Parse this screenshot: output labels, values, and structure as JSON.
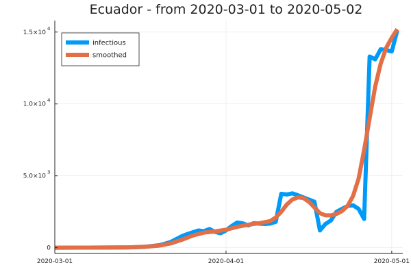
{
  "chart_data": {
    "type": "line",
    "title": "Ecuador - from 2020-03-01 to 2020-05-02",
    "xlabel": "",
    "ylabel": "",
    "xlim": [
      "2020-03-01",
      "2020-05-03"
    ],
    "ylim": [
      -400,
      15800
    ],
    "grid": true,
    "legend_position": "top-left",
    "x_ticks": [
      {
        "value": "2020-03-01",
        "label": "2020-03-01"
      },
      {
        "value": "2020-04-01",
        "label": "2020-04-01"
      },
      {
        "value": "2020-05-01",
        "label": "2020-05-01"
      }
    ],
    "y_ticks": [
      {
        "value": 0,
        "label": "0",
        "exp": ""
      },
      {
        "value": 5000,
        "label": "5.0×10",
        "exp": "3"
      },
      {
        "value": 10000,
        "label": "1.0×10",
        "exp": "4"
      },
      {
        "value": 15000,
        "label": "1.5×10",
        "exp": "4"
      }
    ],
    "series": [
      {
        "name": "infectious",
        "color": "#009af9",
        "points": [
          [
            "2020-03-01",
            0
          ],
          [
            "2020-03-05",
            5
          ],
          [
            "2020-03-10",
            10
          ],
          [
            "2020-03-14",
            20
          ],
          [
            "2020-03-17",
            50
          ],
          [
            "2020-03-20",
            180
          ],
          [
            "2020-03-22",
            400
          ],
          [
            "2020-03-24",
            800
          ],
          [
            "2020-03-25",
            950
          ],
          [
            "2020-03-27",
            1200
          ],
          [
            "2020-03-28",
            1150
          ],
          [
            "2020-03-29",
            1300
          ],
          [
            "2020-03-30",
            1100
          ],
          [
            "2020-03-31",
            1000
          ],
          [
            "2020-04-01",
            1200
          ],
          [
            "2020-04-02",
            1500
          ],
          [
            "2020-04-03",
            1750
          ],
          [
            "2020-04-04",
            1700
          ],
          [
            "2020-04-05",
            1550
          ],
          [
            "2020-04-06",
            1700
          ],
          [
            "2020-04-08",
            1650
          ],
          [
            "2020-04-09",
            1680
          ],
          [
            "2020-04-10",
            1800
          ],
          [
            "2020-04-11",
            3750
          ],
          [
            "2020-04-12",
            3700
          ],
          [
            "2020-04-13",
            3780
          ],
          [
            "2020-04-14",
            3650
          ],
          [
            "2020-04-15",
            3500
          ],
          [
            "2020-04-16",
            3350
          ],
          [
            "2020-04-17",
            3200
          ],
          [
            "2020-04-18",
            1200
          ],
          [
            "2020-04-19",
            1650
          ],
          [
            "2020-04-20",
            1900
          ],
          [
            "2020-04-21",
            2500
          ],
          [
            "2020-04-22",
            2700
          ],
          [
            "2020-04-23",
            2900
          ],
          [
            "2020-04-24",
            2950
          ],
          [
            "2020-04-25",
            2700
          ],
          [
            "2020-04-26",
            2000
          ],
          [
            "2020-04-27",
            13300
          ],
          [
            "2020-04-28",
            13100
          ],
          [
            "2020-04-29",
            13800
          ],
          [
            "2020-04-30",
            13750
          ],
          [
            "2020-05-01",
            13650
          ],
          [
            "2020-05-02",
            15100
          ]
        ]
      },
      {
        "name": "smoothed",
        "color": "#e26f46",
        "points": [
          [
            "2020-03-01",
            0
          ],
          [
            "2020-03-10",
            10
          ],
          [
            "2020-03-15",
            30
          ],
          [
            "2020-03-18",
            80
          ],
          [
            "2020-03-20",
            150
          ],
          [
            "2020-03-22",
            300
          ],
          [
            "2020-03-24",
            550
          ],
          [
            "2020-03-26",
            850
          ],
          [
            "2020-03-28",
            1050
          ],
          [
            "2020-03-30",
            1130
          ],
          [
            "2020-04-01",
            1250
          ],
          [
            "2020-04-03",
            1450
          ],
          [
            "2020-04-05",
            1600
          ],
          [
            "2020-04-07",
            1700
          ],
          [
            "2020-04-09",
            1850
          ],
          [
            "2020-04-10",
            2100
          ],
          [
            "2020-04-11",
            2500
          ],
          [
            "2020-04-12",
            3000
          ],
          [
            "2020-04-13",
            3350
          ],
          [
            "2020-04-14",
            3500
          ],
          [
            "2020-04-15",
            3450
          ],
          [
            "2020-04-16",
            3200
          ],
          [
            "2020-04-17",
            2800
          ],
          [
            "2020-04-18",
            2400
          ],
          [
            "2020-04-19",
            2250
          ],
          [
            "2020-04-20",
            2250
          ],
          [
            "2020-04-21",
            2350
          ],
          [
            "2020-04-22",
            2550
          ],
          [
            "2020-04-23",
            2900
          ],
          [
            "2020-04-24",
            3600
          ],
          [
            "2020-04-25",
            4800
          ],
          [
            "2020-04-26",
            6800
          ],
          [
            "2020-04-27",
            9000
          ],
          [
            "2020-04-28",
            11200
          ],
          [
            "2020-04-29",
            12800
          ],
          [
            "2020-04-30",
            13900
          ],
          [
            "2020-05-01",
            14600
          ],
          [
            "2020-05-02",
            15200
          ]
        ]
      }
    ]
  }
}
